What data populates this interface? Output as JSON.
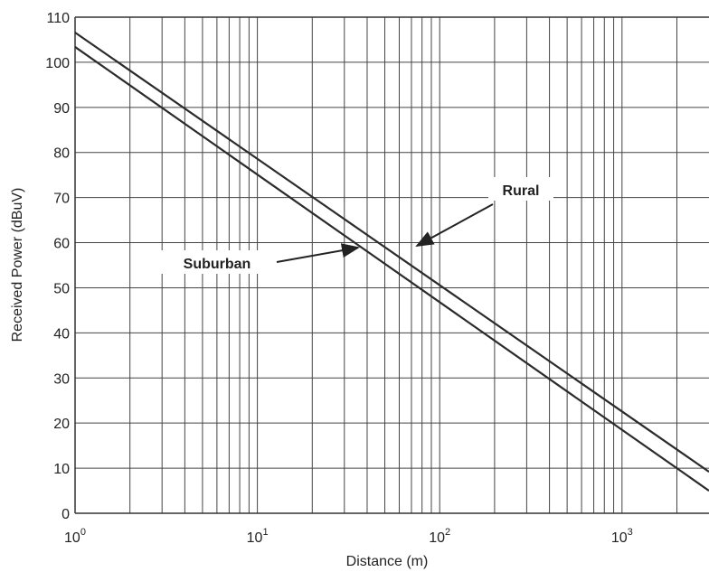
{
  "chart_data": {
    "type": "line",
    "xlabel": "Distance (m)",
    "ylabel": "Received Power (dBuV)",
    "x_scale": "log",
    "xlim": [
      1,
      3000
    ],
    "ylim": [
      0,
      110
    ],
    "xticks": [
      {
        "value": 1,
        "label": "10",
        "exponent": "0"
      },
      {
        "value": 10,
        "label": "10",
        "exponent": "1"
      },
      {
        "value": 100,
        "label": "10",
        "exponent": "2"
      },
      {
        "value": 1000,
        "label": "10",
        "exponent": "3"
      }
    ],
    "x_minor_ticks": [
      2,
      3,
      4,
      5,
      6,
      7,
      8,
      9,
      20,
      30,
      40,
      50,
      60,
      70,
      80,
      90,
      200,
      300,
      400,
      500,
      600,
      700,
      800,
      900,
      2000
    ],
    "yticks": [
      0,
      10,
      20,
      30,
      40,
      50,
      60,
      70,
      80,
      90,
      100,
      110
    ],
    "grid": true,
    "x": [
      1,
      3000
    ],
    "series": [
      {
        "name": "Rural",
        "color": "#2b2b2b",
        "values": [
          106.6,
          9.2
        ]
      },
      {
        "name": "Suburban",
        "color": "#2b2b2b",
        "values": [
          103.4,
          5.0
        ]
      }
    ]
  }
}
